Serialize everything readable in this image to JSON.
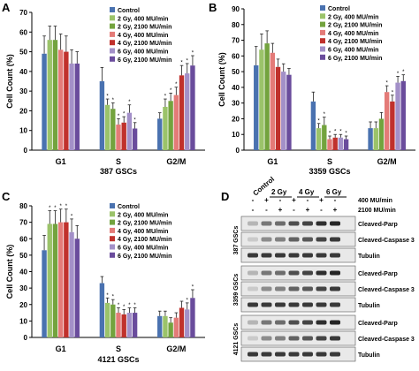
{
  "colors": {
    "Control": "#4a72b0",
    "2 Gy, 400 MU/min": "#9bc36a",
    "2 Gy, 2100 MU/min": "#73a33e",
    "4 Gy, 400 MU/min": "#e47b78",
    "4 Gy, 2100 MU/min": "#c0312c",
    "6 Gy, 400 MU/min": "#a390c8",
    "6 Gy, 2100 MU/min": "#6a4c9c"
  },
  "chart_data": [
    {
      "panel": "A",
      "type": "bar",
      "xlabel": "387 GSCs",
      "ylabel": "Cell Count (%)",
      "ylim": [
        0,
        70
      ],
      "yticks": [
        0,
        10,
        20,
        30,
        40,
        50,
        60,
        70
      ],
      "tick_labels": [
        "0",
        "10",
        "20",
        "30",
        "40",
        "50",
        "60",
        "70"
      ],
      "categories": [
        "G1",
        "S",
        "G2/M"
      ],
      "legend": "top-right",
      "series": [
        {
          "name": "Control",
          "values": [
            49,
            35,
            16
          ],
          "errors": [
            9,
            7,
            3
          ]
        },
        {
          "name": "2 Gy, 400 MU/min",
          "values": [
            56,
            23,
            22
          ],
          "errors": [
            7,
            3,
            4
          ]
        },
        {
          "name": "2 Gy, 2100 MU/min",
          "values": [
            56,
            21,
            25
          ],
          "errors": [
            7,
            3,
            4
          ]
        },
        {
          "name": "4 Gy, 400 MU/min",
          "values": [
            51,
            13,
            28
          ],
          "errors": [
            8,
            3,
            4
          ]
        },
        {
          "name": "4 Gy, 2100 MU/min",
          "values": [
            50,
            14,
            38
          ],
          "errors": [
            8,
            3,
            5
          ]
        },
        {
          "name": "6 Gy, 400 MU/min",
          "values": [
            44,
            19,
            39
          ],
          "errors": [
            7,
            4,
            5
          ]
        },
        {
          "name": "6 Gy, 2100 MU/min",
          "values": [
            44,
            11,
            43
          ],
          "errors": [
            6,
            3,
            5
          ]
        }
      ],
      "stars": [
        [
          0,
          0,
          0,
          0,
          0,
          0,
          0
        ],
        [
          0,
          1,
          1,
          1,
          1,
          1,
          1
        ],
        [
          0,
          1,
          1,
          1,
          1,
          1,
          1
        ]
      ]
    },
    {
      "panel": "B",
      "type": "bar",
      "xlabel": "3359 GSCs",
      "ylabel": "Cell Count (%)",
      "ylim": [
        0,
        90
      ],
      "yticks": [
        0,
        10,
        20,
        30,
        40,
        50,
        60,
        70,
        80,
        90
      ],
      "tick_labels": [
        "0",
        "10",
        "20",
        "30",
        "40",
        "50",
        "60",
        "70",
        "80",
        "90"
      ],
      "categories": [
        "G1",
        "S",
        "G2/M"
      ],
      "legend": "top-right",
      "series": [
        {
          "name": "Control",
          "values": [
            54,
            31,
            14
          ],
          "errors": [
            12,
            6,
            4
          ]
        },
        {
          "name": "2 Gy, 400 MU/min",
          "values": [
            64,
            14,
            14
          ],
          "errors": [
            10,
            3,
            4
          ]
        },
        {
          "name": "2 Gy, 2100 MU/min",
          "values": [
            68,
            16,
            20
          ],
          "errors": [
            8,
            5,
            4
          ]
        },
        {
          "name": "4 Gy, 400 MU/min",
          "values": [
            62,
            7,
            37
          ],
          "errors": [
            6,
            2,
            4
          ]
        },
        {
          "name": "4 Gy, 2100 MU/min",
          "values": [
            53,
            8,
            31
          ],
          "errors": [
            5,
            2,
            4
          ]
        },
        {
          "name": "6 Gy, 400 MU/min",
          "values": [
            50,
            8,
            43
          ],
          "errors": [
            5,
            2,
            4
          ]
        },
        {
          "name": "6 Gy, 2100 MU/min",
          "values": [
            48,
            7,
            44
          ],
          "errors": [
            4,
            2,
            4
          ]
        }
      ],
      "stars": [
        [
          0,
          0,
          0,
          0,
          0,
          0,
          0
        ],
        [
          0,
          1,
          1,
          1,
          1,
          1,
          1
        ],
        [
          0,
          0,
          0,
          1,
          1,
          1,
          1
        ]
      ]
    },
    {
      "panel": "C",
      "type": "bar",
      "xlabel": "4121 GSCs",
      "ylabel": "Cell Count (%)",
      "ylim": [
        0,
        80
      ],
      "yticks": [
        0,
        10,
        20,
        30,
        40,
        50,
        60,
        70,
        80
      ],
      "tick_labels": [
        "0",
        "10",
        "20",
        "30",
        "40",
        "50",
        "60",
        "70",
        "80"
      ],
      "categories": [
        "G1",
        "S",
        "G2/M"
      ],
      "legend": "top-right",
      "series": [
        {
          "name": "Control",
          "values": [
            53,
            33,
            13
          ],
          "errors": [
            9,
            4,
            3
          ]
        },
        {
          "name": "2 Gy, 400 MU/min",
          "values": [
            69,
            21,
            13
          ],
          "errors": [
            8,
            3,
            3
          ]
        },
        {
          "name": "2 Gy, 2100 MU/min",
          "values": [
            69,
            20,
            9
          ],
          "errors": [
            8,
            3,
            3
          ]
        },
        {
          "name": "4 Gy, 400 MU/min",
          "values": [
            70,
            15,
            12
          ],
          "errors": [
            8,
            3,
            3
          ]
        },
        {
          "name": "4 Gy, 2100 MU/min",
          "values": [
            70,
            14,
            18
          ],
          "errors": [
            8,
            3,
            4
          ]
        },
        {
          "name": "6 Gy, 400 MU/min",
          "values": [
            64,
            15,
            17
          ],
          "errors": [
            8,
            3,
            4
          ]
        },
        {
          "name": "6 Gy, 2100 MU/min",
          "values": [
            60,
            15,
            24
          ],
          "errors": [
            8,
            3,
            5
          ]
        }
      ],
      "stars": [
        [
          0,
          1,
          1,
          1,
          1,
          1,
          0
        ],
        [
          0,
          1,
          1,
          1,
          1,
          1,
          1
        ],
        [
          0,
          0,
          0,
          0,
          0,
          1,
          1
        ]
      ]
    }
  ],
  "blot": {
    "panel": "D",
    "conditions": [
      "Control",
      "2 Gy",
      "4 Gy",
      "6 Gy"
    ],
    "dose_rates": [
      "400 MU/min",
      "2100 MU/min"
    ],
    "row_400": [
      "-",
      "+",
      "-",
      "+",
      "-",
      "+",
      "-"
    ],
    "row_2100": [
      "-",
      "-",
      "+",
      "-",
      "+",
      "-",
      "+"
    ],
    "cell_lines": [
      {
        "name": "387 GSCs",
        "bands": [
          "Cleaved-Parp",
          "Cleaved-Caspase 3",
          "Tubulin"
        ]
      },
      {
        "name": "3359 GSCs",
        "bands": [
          "Cleaved-Parp",
          "Cleaved-Caspase 3",
          "Tubulin"
        ]
      },
      {
        "name": "4121 GSCs",
        "bands": [
          "Cleaved-Parp",
          "Cleaved-Caspase 3",
          "Tubulin"
        ]
      }
    ]
  }
}
